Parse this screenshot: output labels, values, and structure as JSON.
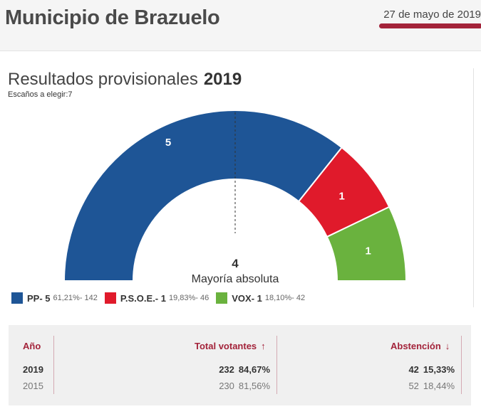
{
  "header": {
    "title": "Municipio de Brazuelo",
    "date": "27 de mayo de 2019",
    "accent": "#a3233a"
  },
  "results": {
    "title": "Resultados provisionales",
    "year": "2019",
    "seats_to_elect": "Escaños a elegir:7"
  },
  "chart_data": {
    "type": "parliament-hemicycle",
    "total_seats": 7,
    "majority": {
      "value": "4",
      "label": "Mayoría absoluta"
    },
    "parties": [
      {
        "name": "PP",
        "seats": 5,
        "seats_label": "5",
        "legend_label": "PP- 5",
        "detail": "61,21%- 142",
        "pct": 61.21,
        "votes": 142,
        "color": "#1e5596"
      },
      {
        "name": "P.S.O.E.",
        "seats": 1,
        "seats_label": "1",
        "legend_label": "P.S.O.E.- 1",
        "detail": "19,83%- 46",
        "pct": 19.83,
        "votes": 46,
        "color": "#e01a2b"
      },
      {
        "name": "VOX",
        "seats": 1,
        "seats_label": "1",
        "legend_label": "VOX- 1",
        "detail": "18,10%- 42",
        "pct": 18.1,
        "votes": 42,
        "color": "#6ab23e"
      }
    ]
  },
  "turnout": {
    "headers": {
      "year": "Año",
      "voters": "Total votantes",
      "abstention": "Abstención"
    },
    "arrows": {
      "voters": "↑",
      "abstention": "↓"
    },
    "rows": [
      {
        "year": "2019",
        "voters": "232",
        "voters_pct": "84,67%",
        "abstention": "42",
        "abstention_pct": "15,33%"
      },
      {
        "year": "2015",
        "voters": "230",
        "voters_pct": "81,56%",
        "abstention": "52",
        "abstention_pct": "18,44%"
      }
    ]
  }
}
